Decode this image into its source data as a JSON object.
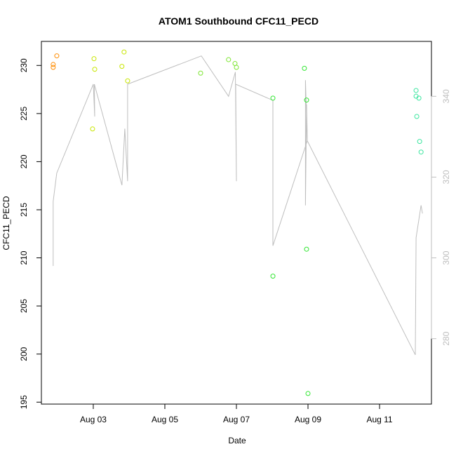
{
  "chart_data": {
    "type": "scatter",
    "title": "ATOM1 Southbound CFC11_PECD",
    "xlabel": "Date",
    "ylabel": "CFC11_PECD",
    "x_unit": "date (August, day of month)",
    "xlim": [
      1.55,
      12.45
    ],
    "ylim": [
      194.8,
      232.5
    ],
    "x_ticks": [
      {
        "value": 3,
        "label": "Aug 03"
      },
      {
        "value": 5,
        "label": "Aug 05"
      },
      {
        "value": 7,
        "label": "Aug 07"
      },
      {
        "value": 9,
        "label": "Aug 09"
      },
      {
        "value": 11,
        "label": "Aug 11"
      }
    ],
    "y_ticks": [
      195,
      200,
      205,
      210,
      215,
      220,
      225,
      230
    ],
    "y2lim": [
      263.8,
      353.6
    ],
    "y2_ticks": [
      280,
      300,
      320,
      340
    ],
    "grid": false,
    "legend": "none",
    "colors": {
      "axis": "#000000",
      "secondary_axis": "#bebebe",
      "line": "#bebebe",
      "orange": "#ff8c00",
      "yellow": "#c8e600",
      "green": "#32e632",
      "teal": "#3ce6a0"
    },
    "series": [
      {
        "marker": "circle",
        "points": [
          {
            "x": 1.88,
            "y": 230.1,
            "color": "#ff8c00"
          },
          {
            "x": 1.88,
            "y": 229.8,
            "color": "#ff8c00"
          },
          {
            "x": 1.98,
            "y": 231.0,
            "color": "#ff8c00"
          },
          {
            "x": 3.02,
            "y": 230.7,
            "color": "#c8e600"
          },
          {
            "x": 3.04,
            "y": 229.6,
            "color": "#c8e600"
          },
          {
            "x": 2.98,
            "y": 223.4,
            "color": "#c8e600"
          },
          {
            "x": 3.8,
            "y": 229.9,
            "color": "#c8e600"
          },
          {
            "x": 3.86,
            "y": 231.4,
            "color": "#c8e600"
          },
          {
            "x": 3.96,
            "y": 228.4,
            "color": "#c8e600"
          },
          {
            "x": 6.0,
            "y": 229.2,
            "color": "#7de632"
          },
          {
            "x": 6.78,
            "y": 230.6,
            "color": "#7de632"
          },
          {
            "x": 6.96,
            "y": 230.2,
            "color": "#7de632"
          },
          {
            "x": 7.0,
            "y": 229.8,
            "color": "#7de632"
          },
          {
            "x": 8.02,
            "y": 226.6,
            "color": "#32e632"
          },
          {
            "x": 8.02,
            "y": 208.1,
            "color": "#32e632"
          },
          {
            "x": 8.9,
            "y": 229.7,
            "color": "#32e632"
          },
          {
            "x": 8.96,
            "y": 226.4,
            "color": "#32e632"
          },
          {
            "x": 8.96,
            "y": 210.9,
            "color": "#32e632"
          },
          {
            "x": 9.0,
            "y": 195.9,
            "color": "#32e632"
          },
          {
            "x": 12.02,
            "y": 227.4,
            "color": "#3ce6a0"
          },
          {
            "x": 12.02,
            "y": 226.8,
            "color": "#3ce6a0"
          },
          {
            "x": 12.1,
            "y": 226.6,
            "color": "#3ce6a0"
          },
          {
            "x": 12.04,
            "y": 224.7,
            "color": "#3ce6a0"
          },
          {
            "x": 12.12,
            "y": 222.1,
            "color": "#3ce6a0"
          },
          {
            "x": 12.16,
            "y": 221.0,
            "color": "#3ce6a0"
          }
        ]
      },
      {
        "type": "line",
        "axis": "right",
        "color": "#bebebe",
        "points": [
          [
            1.88,
            298
          ],
          [
            1.88,
            314
          ],
          [
            1.98,
            321
          ],
          [
            3.0,
            343
          ],
          [
            3.04,
            335
          ],
          [
            3.03,
            343
          ],
          [
            3.8,
            318
          ],
          [
            3.88,
            332
          ],
          [
            3.96,
            319
          ],
          [
            3.96,
            343
          ],
          [
            6.02,
            350
          ],
          [
            6.78,
            340
          ],
          [
            6.97,
            346
          ],
          [
            7.0,
            319
          ],
          [
            6.98,
            343
          ],
          [
            8.02,
            339
          ],
          [
            8.02,
            303
          ],
          [
            8.98,
            329
          ],
          [
            8.93,
            344
          ],
          [
            8.93,
            313
          ],
          [
            8.96,
            338
          ],
          [
            8.98,
            330
          ],
          [
            8.98,
            329
          ],
          [
            12.0,
            276
          ],
          [
            12.02,
            305
          ],
          [
            12.16,
            313
          ],
          [
            12.2,
            311
          ]
        ]
      }
    ]
  }
}
